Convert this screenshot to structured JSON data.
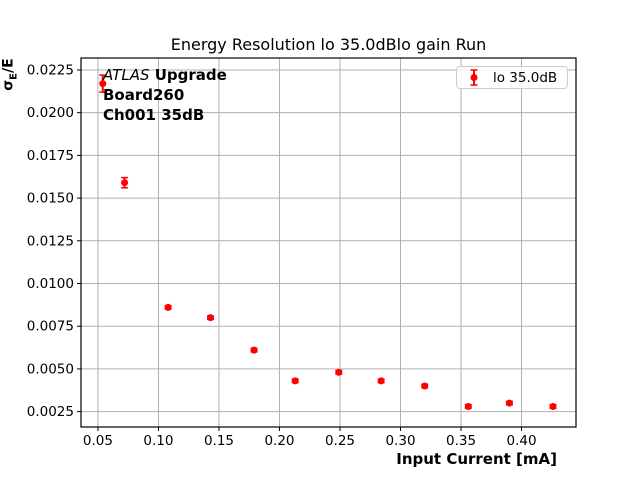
{
  "chart_data": {
    "type": "scatter",
    "title": "Energy Resolution lo 35.0dBlo gain Run",
    "xlabel": "Input Current [mA]",
    "ylabel": "σE/E",
    "ylabel_parts": {
      "sigma": "σ",
      "sub": "E",
      "rest": "/E"
    },
    "xlim": [
      0.036,
      0.445
    ],
    "ylim": [
      0.0016,
      0.0232
    ],
    "xticks": [
      "0.05",
      "0.10",
      "0.15",
      "0.20",
      "0.25",
      "0.30",
      "0.35",
      "0.40"
    ],
    "yticks": [
      "0.0025",
      "0.0050",
      "0.0075",
      "0.0100",
      "0.0125",
      "0.0150",
      "0.0175",
      "0.0200",
      "0.0225"
    ],
    "grid": true,
    "grid_color": "#b0b0b0",
    "legend_position": "upper right",
    "series": [
      {
        "name": "lo 35.0dB",
        "color": "#ff0000",
        "marker": "o",
        "x": [
          0.054,
          0.072,
          0.108,
          0.143,
          0.179,
          0.213,
          0.249,
          0.284,
          0.32,
          0.356,
          0.39,
          0.426
        ],
        "y": [
          0.0217,
          0.0159,
          0.0086,
          0.008,
          0.0061,
          0.0043,
          0.0048,
          0.0043,
          0.004,
          0.0028,
          0.003,
          0.0028
        ],
        "yerr": [
          0.0005,
          0.0003,
          0.0001,
          0.0001,
          0.0001,
          0.0001,
          0.0001,
          0.0001,
          0.0001,
          0.0001,
          0.0001,
          0.0001
        ]
      }
    ],
    "annotation": {
      "experiment": "ATLAS",
      "tag": "Upgrade",
      "board": "Board260",
      "channel": "Ch001 35dB"
    },
    "annotations": [
      "ATLAS Upgrade",
      "Board260",
      "Ch001 35dB"
    ]
  }
}
